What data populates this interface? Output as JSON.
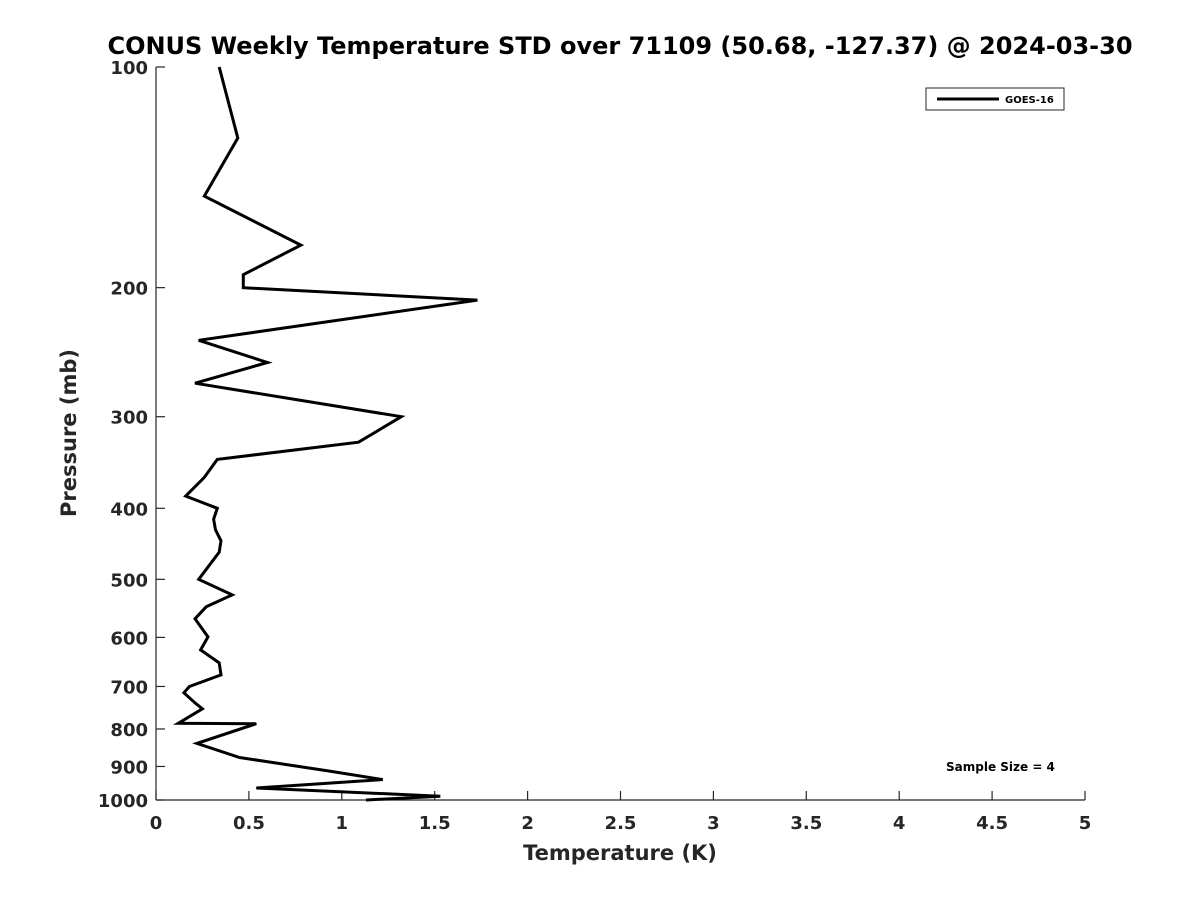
{
  "chart_data": {
    "type": "line",
    "title": "CONUS Weekly Temperature STD over 71109 (50.68, -127.37) @ 2024-03-30",
    "xlabel": "Temperature (K)",
    "ylabel": "Pressure (mb)",
    "xlim": [
      0,
      5
    ],
    "ylim": [
      100,
      1000
    ],
    "y_scale": "log",
    "y_reversed": true,
    "x_ticks": [
      "0",
      "0.5",
      "1",
      "1.5",
      "2",
      "2.5",
      "3",
      "3.5",
      "4",
      "4.5",
      "5"
    ],
    "y_ticks": [
      "100",
      "200",
      "300",
      "400",
      "500",
      "600",
      "700",
      "800",
      "900",
      "1000"
    ],
    "grid": false,
    "legend_position": "top-right",
    "series": [
      {
        "name": "GOES-16",
        "color": "#000000",
        "points": [
          [
            0.34,
            100
          ],
          [
            0.44,
            125
          ],
          [
            0.26,
            150
          ],
          [
            0.78,
            175
          ],
          [
            0.47,
            192
          ],
          [
            0.47,
            200
          ],
          [
            1.73,
            208
          ],
          [
            0.23,
            236
          ],
          [
            0.6,
            253
          ],
          [
            0.21,
            270
          ],
          [
            1.32,
            300
          ],
          [
            1.09,
            325
          ],
          [
            0.33,
            343
          ],
          [
            0.26,
            363
          ],
          [
            0.16,
            385
          ],
          [
            0.33,
            400
          ],
          [
            0.31,
            414
          ],
          [
            0.32,
            428
          ],
          [
            0.35,
            443
          ],
          [
            0.34,
            459
          ],
          [
            0.23,
            500
          ],
          [
            0.41,
            525
          ],
          [
            0.27,
            545
          ],
          [
            0.21,
            566
          ],
          [
            0.28,
            599
          ],
          [
            0.24,
            624
          ],
          [
            0.34,
            650
          ],
          [
            0.35,
            675
          ],
          [
            0.18,
            700
          ],
          [
            0.15,
            714
          ],
          [
            0.21,
            737
          ],
          [
            0.25,
            751
          ],
          [
            0.12,
            786
          ],
          [
            0.54,
            787
          ],
          [
            0.22,
            837
          ],
          [
            0.45,
            875
          ],
          [
            0.93,
            913
          ],
          [
            1.22,
            938
          ],
          [
            0.54,
            963
          ],
          [
            1.53,
            988
          ],
          [
            1.13,
            1000
          ]
        ]
      }
    ],
    "annotations": [
      "Sample Size = 4"
    ]
  }
}
